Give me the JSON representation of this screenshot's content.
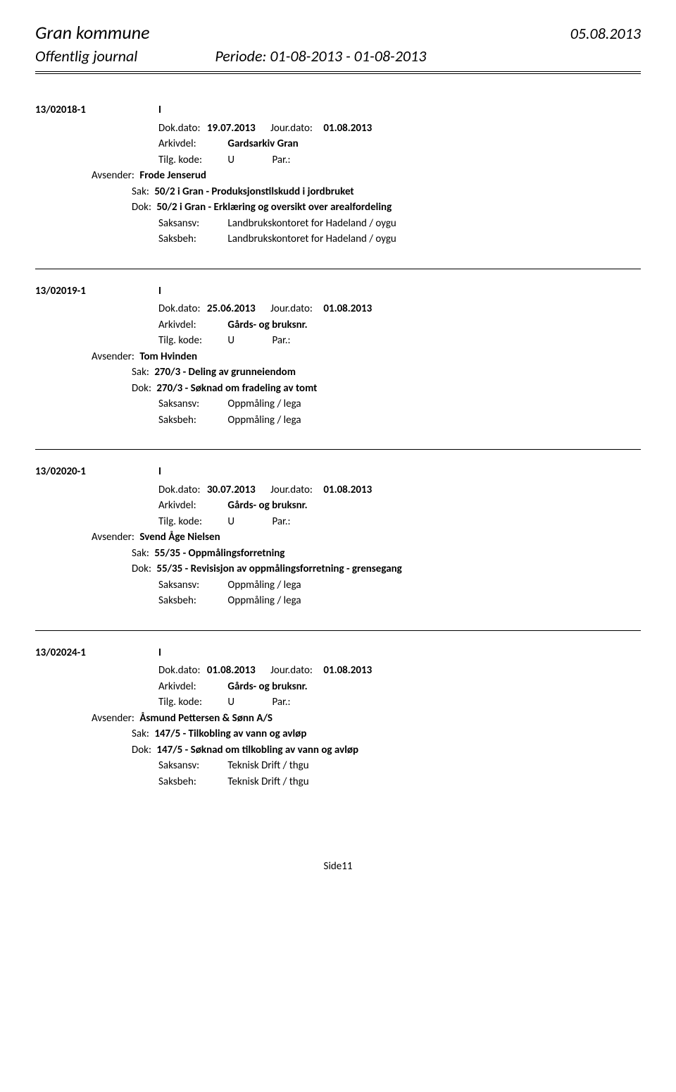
{
  "header": {
    "org": "Gran kommune",
    "date": "05.08.2013",
    "journal_title": "Offentlig journal",
    "period": "Periode: 01-08-2013 - 01-08-2013"
  },
  "entries": [
    {
      "id": "13/02018-1",
      "type": "I",
      "dok_dato_label": "Dok.dato:",
      "dok_dato": "19.07.2013",
      "jour_dato_label": "Jour.dato:",
      "jour_dato": "01.08.2013",
      "arkiv_label": "Arkivdel:",
      "arkiv": "Gardsarkiv Gran",
      "tilg_label": "Tilg. kode:",
      "tilg": "U",
      "par_label": "Par.:",
      "avsender_label": "Avsender:",
      "avsender": "Frode Jenserud",
      "sak_label": "Sak:",
      "sak": "50/2 i Gran - Produksjonstilskudd i jordbruket",
      "dok_label": "Dok:",
      "dok": "50/2 i Gran -   Erklæring og oversikt over arealfordeling",
      "saksansv_label": "Saksansv:",
      "saksansv": "Landbrukskontoret for Hadeland / oygu",
      "saksbeh_label": "Saksbeh:",
      "saksbeh": "Landbrukskontoret for Hadeland / oygu"
    },
    {
      "id": "13/02019-1",
      "type": "I",
      "dok_dato_label": "Dok.dato:",
      "dok_dato": "25.06.2013",
      "jour_dato_label": "Jour.dato:",
      "jour_dato": "01.08.2013",
      "arkiv_label": "Arkivdel:",
      "arkiv": "Gårds- og bruksnr.",
      "tilg_label": "Tilg. kode:",
      "tilg": "U",
      "par_label": "Par.:",
      "avsender_label": "Avsender:",
      "avsender": "Tom Hvinden",
      "sak_label": "Sak:",
      "sak": "270/3 - Deling av grunneiendom",
      "dok_label": "Dok:",
      "dok": "270/3 - Søknad om fradeling av tomt",
      "saksansv_label": "Saksansv:",
      "saksansv": "Oppmåling / lega",
      "saksbeh_label": "Saksbeh:",
      "saksbeh": "Oppmåling / lega"
    },
    {
      "id": "13/02020-1",
      "type": "I",
      "dok_dato_label": "Dok.dato:",
      "dok_dato": "30.07.2013",
      "jour_dato_label": "Jour.dato:",
      "jour_dato": "01.08.2013",
      "arkiv_label": "Arkivdel:",
      "arkiv": "Gårds- og bruksnr.",
      "tilg_label": "Tilg. kode:",
      "tilg": "U",
      "par_label": "Par.:",
      "avsender_label": "Avsender:",
      "avsender": "Svend Åge Nielsen",
      "sak_label": "Sak:",
      "sak": "55/35 - Oppmålingsforretning",
      "dok_label": "Dok:",
      "dok": "55/35 - Revisisjon av oppmålingsforretning - grensegang",
      "saksansv_label": "Saksansv:",
      "saksansv": "Oppmåling / lega",
      "saksbeh_label": "Saksbeh:",
      "saksbeh": "Oppmåling / lega"
    },
    {
      "id": "13/02024-1",
      "type": "I",
      "dok_dato_label": "Dok.dato:",
      "dok_dato": "01.08.2013",
      "jour_dato_label": "Jour.dato:",
      "jour_dato": "01.08.2013",
      "arkiv_label": "Arkivdel:",
      "arkiv": "Gårds- og bruksnr.",
      "tilg_label": "Tilg. kode:",
      "tilg": "U",
      "par_label": "Par.:",
      "avsender_label": "Avsender:",
      "avsender": "Åsmund Pettersen & Sønn A/S",
      "sak_label": "Sak:",
      "sak": "147/5 - Tilkobling av vann og avløp",
      "dok_label": "Dok:",
      "dok": "147/5 - Søknad om tilkobling av vann og avløp",
      "saksansv_label": "Saksansv:",
      "saksansv": "Teknisk Drift / thgu",
      "saksbeh_label": "Saksbeh:",
      "saksbeh": "Teknisk Drift / thgu"
    }
  ],
  "footer": {
    "page": "Side11"
  }
}
